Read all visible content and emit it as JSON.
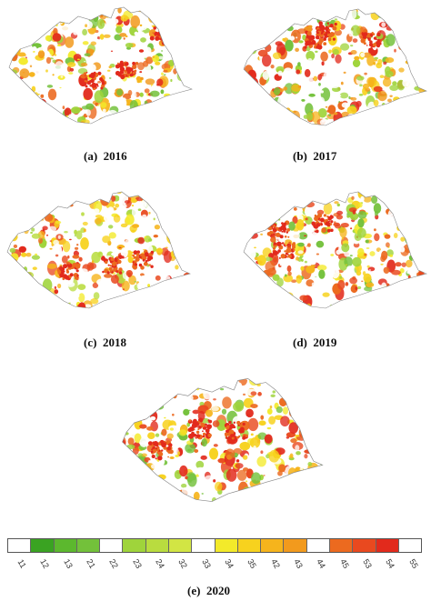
{
  "panels": [
    {
      "label": "(a)",
      "year": "2016"
    },
    {
      "label": "(b)",
      "year": "2017"
    },
    {
      "label": "(c)",
      "year": "2018"
    },
    {
      "label": "(d)",
      "year": "2019"
    },
    {
      "label": "(e)",
      "year": "2020"
    }
  ],
  "legend": {
    "classes": [
      {
        "code": "11",
        "color": "#ffffff"
      },
      {
        "code": "12",
        "color": "#3aa322"
      },
      {
        "code": "13",
        "color": "#5cb82e"
      },
      {
        "code": "21",
        "color": "#73c13a"
      },
      {
        "code": "22",
        "color": "#ffffff"
      },
      {
        "code": "23",
        "color": "#9fd43b"
      },
      {
        "code": "24",
        "color": "#b9dc3f"
      },
      {
        "code": "32",
        "color": "#d2e544"
      },
      {
        "code": "33",
        "color": "#ffffff"
      },
      {
        "code": "34",
        "color": "#f3ea2a"
      },
      {
        "code": "35",
        "color": "#f7d21e"
      },
      {
        "code": "42",
        "color": "#f6b41c"
      },
      {
        "code": "43",
        "color": "#f29a1d"
      },
      {
        "code": "44",
        "color": "#ffffff"
      },
      {
        "code": "45",
        "color": "#ec6a1f"
      },
      {
        "code": "53",
        "color": "#e9491f"
      },
      {
        "code": "54",
        "color": "#e22a1c"
      },
      {
        "code": "55",
        "color": "#ffffff"
      }
    ]
  }
}
